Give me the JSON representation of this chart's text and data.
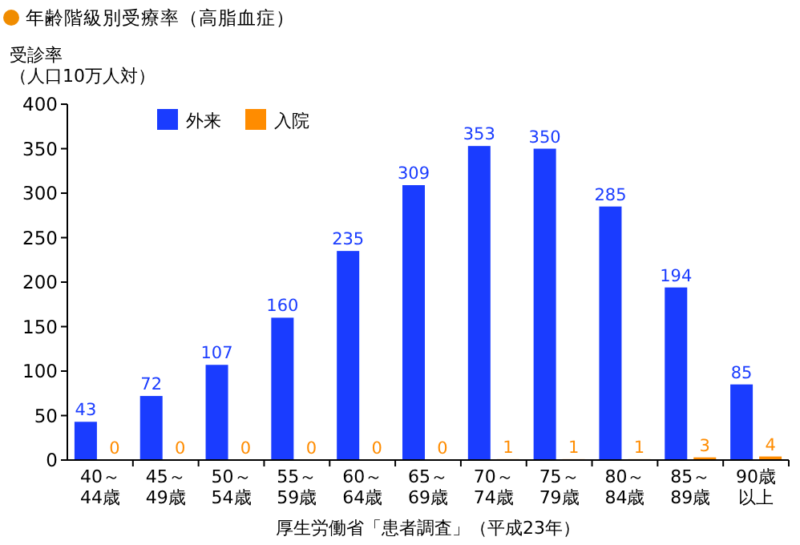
{
  "chart_data": {
    "type": "bar",
    "title": "年齢階級別受療率（高脂血症）",
    "ylabel": "受診率（人口10万人対）",
    "categories": [
      "40～44歳",
      "45～49歳",
      "50～54歳",
      "55～59歳",
      "60～64歳",
      "65～69歳",
      "70～74歳",
      "75～79歳",
      "80～84歳",
      "85～89歳",
      "90歳以上"
    ],
    "series": [
      {
        "name": "外来",
        "color": "#1a3cff",
        "values": [
          43,
          72,
          107,
          160,
          235,
          309,
          353,
          350,
          285,
          194,
          85
        ]
      },
      {
        "name": "入院",
        "color": "#ff8c00",
        "values": [
          0,
          0,
          0,
          0,
          0,
          0,
          1,
          1,
          1,
          3,
          4
        ]
      }
    ],
    "ylim": [
      0,
      400
    ],
    "yticks": [
      0,
      50,
      100,
      150,
      200,
      250,
      300,
      350,
      400
    ],
    "data_labels": true,
    "legend": "top left",
    "grid": false,
    "annotations": [
      "厚生労働省「患者調査」（平成23年）"
    ]
  }
}
